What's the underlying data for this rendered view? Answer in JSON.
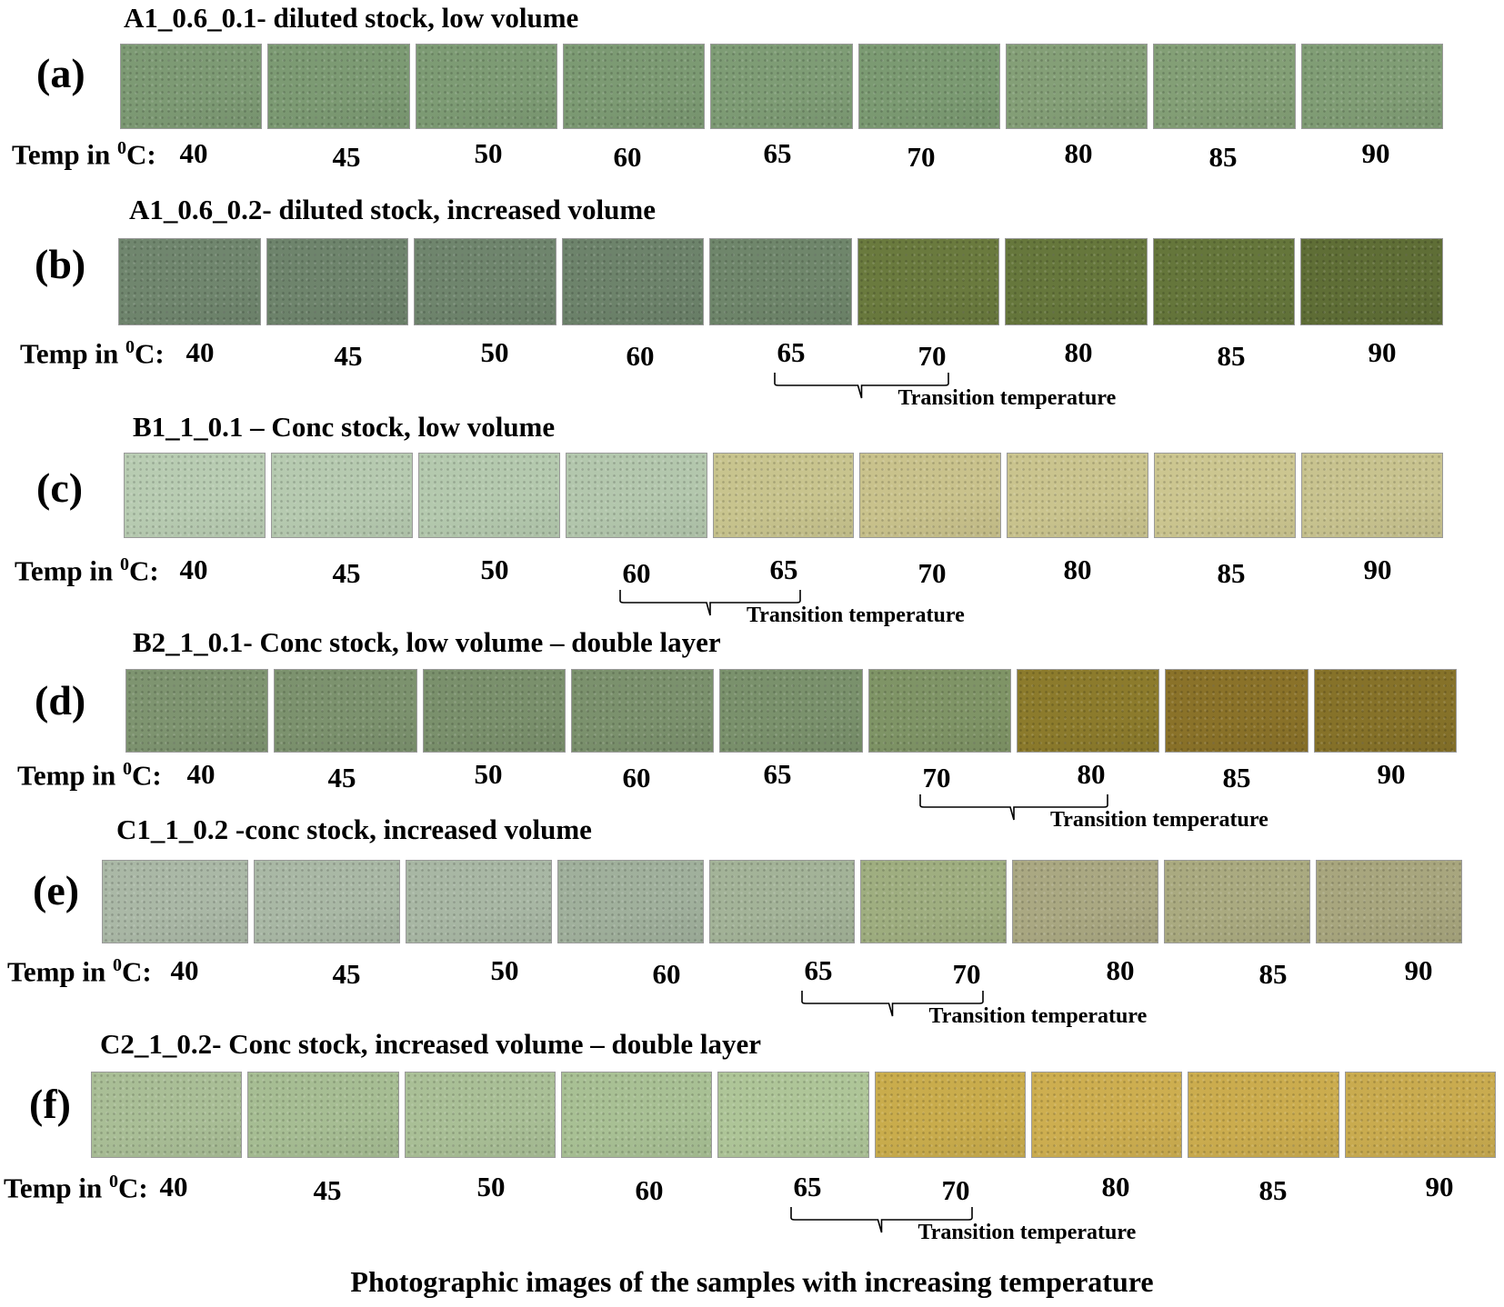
{
  "temp_label": "Temp in ",
  "temp_sup": "0",
  "temp_unit": "C:",
  "transition_label": "Transition temperature",
  "caption": "Photographic images of the samples with increasing temperature",
  "panels": [
    {
      "letter": "(a)",
      "title": "A1_0.6_0.1- diluted stock, low volume",
      "temps": [
        "40",
        "45",
        "50",
        "60",
        "65",
        "70",
        "80",
        "85",
        "90"
      ],
      "colors": [
        "#7d9a74",
        "#7c9a73",
        "#7d9b74",
        "#7c9a73",
        "#7e9c75",
        "#7b9a72",
        "#849f77",
        "#839f76",
        "#809d75"
      ],
      "transition": null
    },
    {
      "letter": "(b)",
      "title": "A1_0.6_0.2- diluted stock, increased volume",
      "temps": [
        "40",
        "45",
        "50",
        "60",
        "65",
        "70",
        "80",
        "85",
        "90"
      ],
      "colors": [
        "#70866e",
        "#6e846c",
        "#6f856d",
        "#6d836b",
        "#6f866b",
        "#6a7a3e",
        "#66773c",
        "#65763b",
        "#5f6e36"
      ],
      "transition": [
        "65",
        "70"
      ]
    },
    {
      "letter": "(c)",
      "title": "B1_1_0.1 – Conc stock, low volume",
      "temps": [
        "40",
        "45",
        "50",
        "60",
        "65",
        "70",
        "80",
        "85",
        "90"
      ],
      "colors": [
        "#b8ccb2",
        "#b6cab0",
        "#b4c9ae",
        "#b3c7ad",
        "#c8c48e",
        "#c9c28c",
        "#cac48e",
        "#ccc690",
        "#c8c38f"
      ],
      "transition": [
        "60",
        "65"
      ]
    },
    {
      "letter": "(d)",
      "title": "B2_1_0.1- Conc stock, low volume – double layer",
      "temps": [
        "40",
        "45",
        "50",
        "60",
        "65",
        "70",
        "80",
        "85",
        "90"
      ],
      "colors": [
        "#7e9470",
        "#7c926e",
        "#7a906c",
        "#7b916d",
        "#7a916c",
        "#7f9466",
        "#8c7b2c",
        "#8a7229",
        "#867229"
      ],
      "transition": [
        "70",
        "80"
      ]
    },
    {
      "letter": "(e)",
      "title": "C1_1_0.2 -conc stock, increased volume",
      "temps": [
        "40",
        "45",
        "50",
        "60",
        "65",
        "70",
        "80",
        "85",
        "90"
      ],
      "colors": [
        "#aab8a6",
        "#a9b8a5",
        "#a8b7a4",
        "#a0b09c",
        "#a3b398",
        "#9fae80",
        "#aaa882",
        "#aaaa80",
        "#a8a67e"
      ],
      "transition": [
        "65",
        "70"
      ]
    },
    {
      "letter": "(f)",
      "title": "C2_1_0.2- Conc stock, increased volume – double layer",
      "temps": [
        "40",
        "45",
        "50",
        "60",
        "65",
        "70",
        "80",
        "85",
        "90"
      ],
      "colors": [
        "#a9be96",
        "#a6bd93",
        "#a9bf96",
        "#a8c094",
        "#aec598",
        "#c9ac4c",
        "#cdae50",
        "#cbac4e",
        "#c9ab4f"
      ],
      "transition": [
        "65",
        "70"
      ]
    }
  ]
}
